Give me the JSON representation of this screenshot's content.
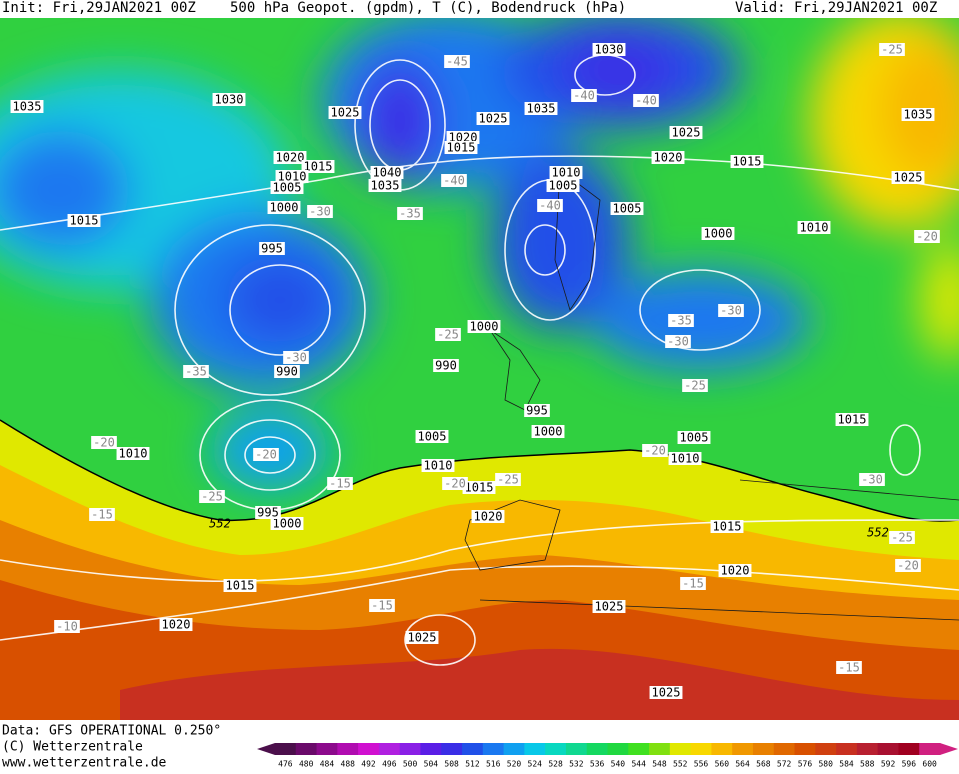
{
  "header": {
    "init": "Init: Fri,29JAN2021 00Z",
    "title": "500 hPa Geopot. (gpdm), T (C), Bodendruck (hPa)",
    "valid": "Valid: Fri,29JAN2021 00Z"
  },
  "footer": {
    "data": "Data: GFS OPERATIONAL 0.250°",
    "copyright": "(C) Wetterzentrale",
    "website": "www.wetterzentrale.de"
  },
  "colorbar": {
    "labels": [
      476,
      480,
      484,
      488,
      492,
      496,
      500,
      504,
      508,
      512,
      516,
      520,
      524,
      528,
      532,
      536,
      540,
      544,
      548,
      552,
      556,
      560,
      564,
      568,
      572,
      576,
      580,
      584,
      588,
      592,
      596,
      600
    ],
    "colors": [
      "#4b0f4b",
      "#6a0a6a",
      "#8c0a8c",
      "#b00cb0",
      "#d010d0",
      "#b020e0",
      "#8a20e6",
      "#5a1ee6",
      "#3a2ee6",
      "#2050e8",
      "#1a78f0",
      "#10a0f0",
      "#08c8e8",
      "#08d8c0",
      "#10d890",
      "#14d860",
      "#20d840",
      "#40e020",
      "#80e010",
      "#e0e800",
      "#f8d800",
      "#f8b800",
      "#f09800",
      "#e88000",
      "#e06800",
      "#d85000",
      "#d04010",
      "#c83020",
      "#b82030",
      "#a81030",
      "#a00020",
      "#d02080"
    ]
  },
  "isobar_labels": [
    1035,
    1030,
    1025,
    1020,
    1015,
    1010,
    1005,
    1000,
    995,
    990,
    1040,
    1035,
    1020,
    1015,
    1025,
    1035,
    1030,
    1025,
    1020,
    1015,
    1035,
    1025,
    1010,
    1005,
    1005,
    1010,
    1000,
    1000,
    990,
    995,
    1000,
    1005,
    1010,
    1015,
    1020,
    1005,
    1010,
    1015,
    1015,
    1020,
    1025,
    1025,
    1020,
    1015,
    1025,
    1010,
    1015,
    1000,
    995
  ],
  "temperature_labels": [
    -45,
    -40,
    -40,
    -40,
    -30,
    -35,
    -40,
    -25,
    -20,
    -35,
    -30,
    -30,
    -25,
    -30,
    -35,
    -25,
    -20,
    -20,
    -25,
    -15,
    -15,
    -20,
    -25,
    -20,
    -30,
    -25,
    -20,
    -15,
    -15,
    -10,
    -15
  ],
  "contour_552_labels": [
    "552",
    "552"
  ]
}
